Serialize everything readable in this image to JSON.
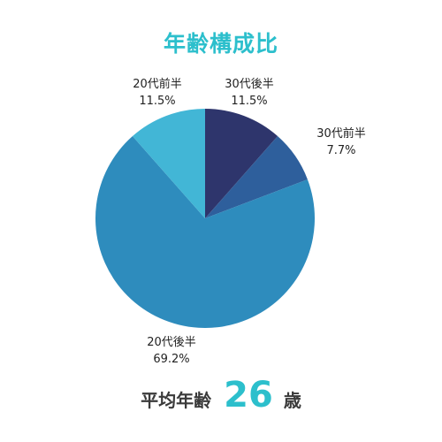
{
  "chart_data": {
    "type": "pie",
    "title": "年齢構成比",
    "start": "top",
    "direction": "clockwise",
    "slices": [
      {
        "name": "30代後半",
        "value": 11.5,
        "label": "11.5%",
        "color": "#2e356c"
      },
      {
        "name": "30代前半",
        "value": 7.7,
        "label": "7.7%",
        "color": "#2e5f9c"
      },
      {
        "name": "20代後半",
        "value": 69.2,
        "label": "69.2%",
        "color": "#2e8cbd"
      },
      {
        "name": "20代前半",
        "value": 11.5,
        "label": "11.5%",
        "color": "#42b6d6"
      }
    ]
  },
  "summary": {
    "label": "平均年齢",
    "value": "26",
    "unit": "歳"
  }
}
